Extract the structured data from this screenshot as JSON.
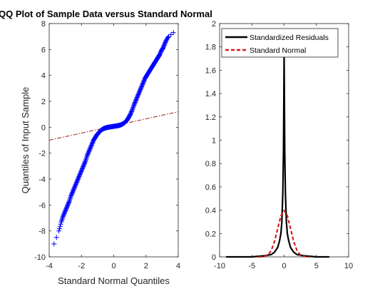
{
  "chart_data": [
    {
      "type": "scatter",
      "title": "QQ Plot of Sample Data versus Standard Normal",
      "xlabel": "Standard Normal Quantiles",
      "ylabel": "Quantiles of Input Sample",
      "xlim": [
        -4,
        4
      ],
      "ylim": [
        -10,
        8
      ],
      "xticks": [
        "-4",
        "-2",
        "0",
        "2",
        "4"
      ],
      "yticks": [
        "-10",
        "-8",
        "-6",
        "-4",
        "-2",
        "0",
        "2",
        "4",
        "6",
        "8"
      ],
      "marker": "+",
      "marker_color": "#0000ff",
      "reference_line": {
        "x": [
          -4,
          4
        ],
        "y": [
          -1.0,
          1.2
        ],
        "color": "#a0201a",
        "style": "dashdot"
      },
      "points": {
        "x": [
          -3.7,
          -3.4,
          -3.25,
          -3.15,
          -3.05,
          -2.95,
          -2.85,
          -2.75,
          -2.65,
          -2.55,
          -2.45,
          -2.35,
          -2.25,
          -2.15,
          -2.05,
          -1.95,
          -1.85,
          -1.75,
          -1.65,
          -1.55,
          -1.45,
          -1.35,
          -1.25,
          -1.15,
          -1.05,
          -0.95,
          -0.85,
          -0.75,
          -0.65,
          -0.55,
          -0.45,
          -0.35,
          -0.25,
          -0.15,
          -0.05,
          0.05,
          0.15,
          0.25,
          0.35,
          0.45,
          0.55,
          0.65,
          0.75,
          0.85,
          0.95,
          1.05,
          1.15,
          1.25,
          1.35,
          1.45,
          1.55,
          1.65,
          1.75,
          1.85,
          1.95,
          2.05,
          2.15,
          2.25,
          2.35,
          2.45,
          2.55,
          2.65,
          2.75,
          2.85,
          2.95,
          3.05,
          3.15,
          3.25,
          3.4,
          3.7
        ],
        "y": [
          -9.0,
          -8.0,
          -7.3,
          -6.9,
          -6.6,
          -6.3,
          -6.0,
          -5.7,
          -5.3,
          -5.0,
          -4.7,
          -4.4,
          -4.1,
          -3.8,
          -3.5,
          -3.2,
          -2.9,
          -2.6,
          -2.2,
          -1.9,
          -1.6,
          -1.3,
          -1.0,
          -0.8,
          -0.6,
          -0.45,
          -0.3,
          -0.2,
          -0.12,
          -0.07,
          -0.03,
          0.0,
          0.02,
          0.04,
          0.06,
          0.08,
          0.1,
          0.12,
          0.15,
          0.19,
          0.25,
          0.33,
          0.45,
          0.6,
          0.8,
          1.05,
          1.35,
          1.7,
          2.0,
          2.3,
          2.6,
          2.9,
          3.2,
          3.5,
          3.8,
          4.0,
          4.2,
          4.4,
          4.6,
          4.8,
          5.0,
          5.2,
          5.4,
          5.6,
          5.9,
          6.1,
          6.4,
          6.7,
          7.0,
          7.3
        ]
      }
    },
    {
      "type": "line",
      "xlim": [
        -10,
        10
      ],
      "ylim": [
        0,
        2
      ],
      "xticks": [
        "-10",
        "-5",
        "0",
        "5",
        "10"
      ],
      "yticks": [
        "0",
        "0.2",
        "0.4",
        "0.6",
        "0.8",
        "1",
        "1.2",
        "1.4",
        "1.6",
        "1.8",
        "2"
      ],
      "legend": "top-right",
      "series": [
        {
          "name": "Standardized Residuals",
          "color": "#000000",
          "style": "solid",
          "x": [
            -9.0,
            -7.0,
            -5.0,
            -3.0,
            -2.0,
            -1.5,
            -1.0,
            -0.7,
            -0.5,
            -0.35,
            -0.2,
            -0.1,
            -0.05,
            0.0,
            0.05,
            0.1,
            0.2,
            0.35,
            0.5,
            0.7,
            1.0,
            1.5,
            2.0,
            3.0,
            5.0,
            7.0
          ],
          "y": [
            0.0,
            0.0,
            0.0,
            0.01,
            0.02,
            0.04,
            0.08,
            0.14,
            0.2,
            0.3,
            0.55,
            0.9,
            1.3,
            1.75,
            1.3,
            0.9,
            0.55,
            0.3,
            0.2,
            0.14,
            0.08,
            0.04,
            0.02,
            0.01,
            0.0,
            0.0
          ]
        },
        {
          "name": "Standard Normal",
          "color": "#d42020",
          "style": "dashed",
          "x": [
            -4.0,
            -3.5,
            -3.0,
            -2.5,
            -2.0,
            -1.5,
            -1.0,
            -0.5,
            0.0,
            0.5,
            1.0,
            1.5,
            2.0,
            2.5,
            3.0,
            3.5,
            4.0
          ],
          "y": [
            0.0001,
            0.0009,
            0.0044,
            0.0175,
            0.054,
            0.1295,
            0.242,
            0.3521,
            0.3989,
            0.3521,
            0.242,
            0.1295,
            0.054,
            0.0175,
            0.0044,
            0.0009,
            0.0001
          ]
        }
      ]
    }
  ]
}
